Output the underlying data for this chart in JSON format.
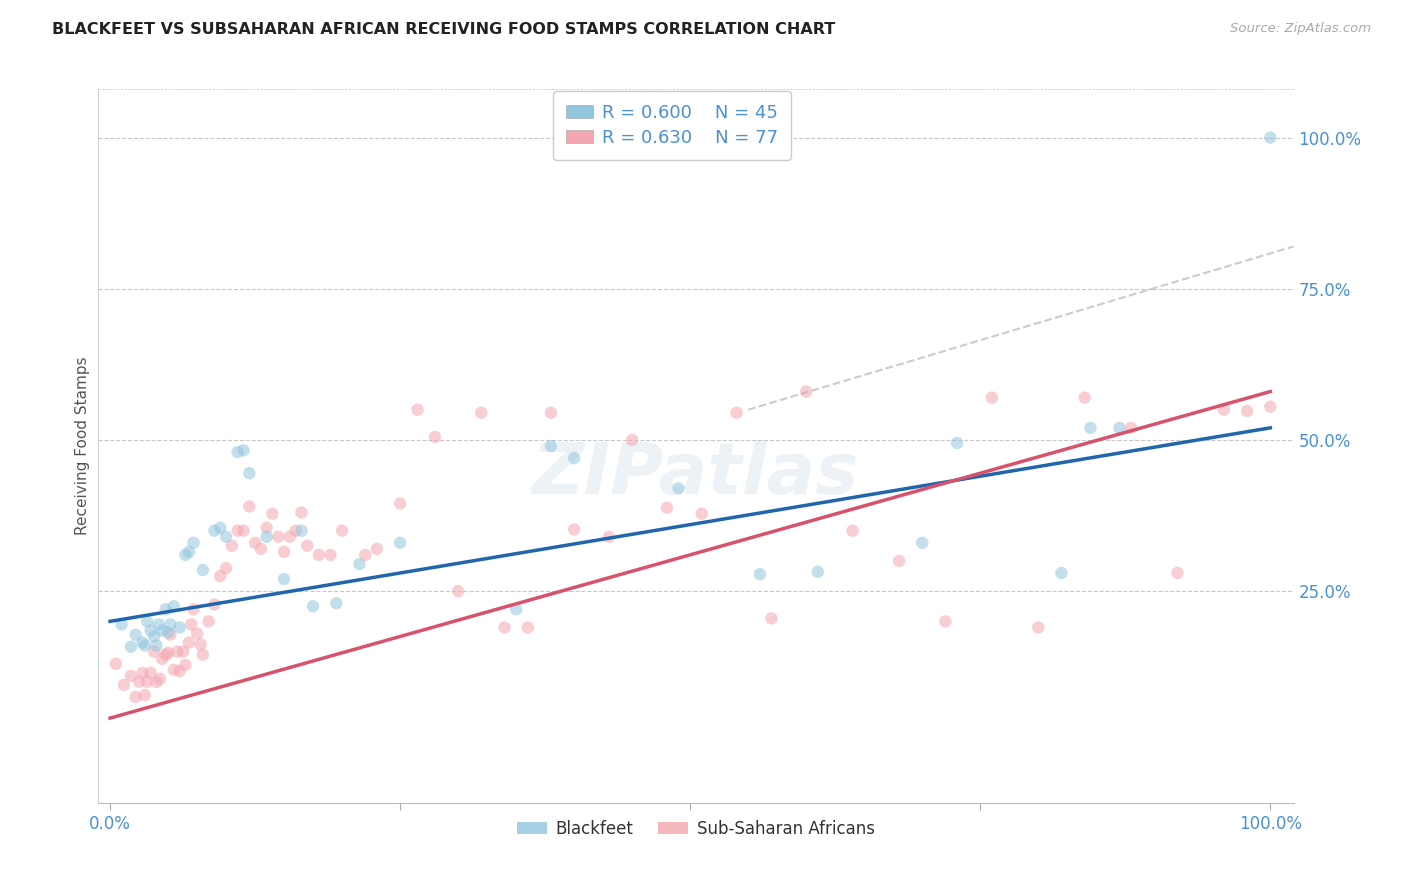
{
  "title": "BLACKFEET VS SUBSAHARAN AFRICAN RECEIVING FOOD STAMPS CORRELATION CHART",
  "source": "Source: ZipAtlas.com",
  "ylabel": "Receiving Food Stamps",
  "xlim": [
    -0.01,
    1.02
  ],
  "ylim": [
    -0.1,
    1.08
  ],
  "yticks": [
    0.25,
    0.5,
    0.75,
    1.0
  ],
  "ytick_labels": [
    "25.0%",
    "50.0%",
    "75.0%",
    "100.0%"
  ],
  "xticks": [
    0.0,
    0.25,
    0.5,
    0.75,
    1.0
  ],
  "xtick_labels": [
    "0.0%",
    "",
    "",
    "",
    "100.0%"
  ],
  "blue_R": "0.600",
  "blue_N": "45",
  "pink_R": "0.630",
  "pink_N": "77",
  "blue_scatter_color": "#92c5de",
  "pink_scatter_color": "#f4a6b0",
  "blue_line_color": "#2166ac",
  "pink_line_color": "#d6536b",
  "legend_label_blue": "Blackfeet",
  "legend_label_pink": "Sub-Saharan Africans",
  "background_color": "#ffffff",
  "grid_color": "#c8c8c8",
  "marker_size": 80,
  "marker_alpha": 0.55,
  "blue_line_x0": 0.0,
  "blue_line_y0": 0.2,
  "blue_line_x1": 1.0,
  "blue_line_y1": 0.52,
  "pink_line_x0": 0.0,
  "pink_line_y0": 0.04,
  "pink_line_x1": 1.0,
  "pink_line_y1": 0.58,
  "dash_line_x0": 0.55,
  "dash_line_y0": 0.55,
  "dash_line_x1": 1.02,
  "dash_line_y1": 0.82,
  "blue_x": [
    0.01,
    0.018,
    0.022,
    0.028,
    0.03,
    0.032,
    0.035,
    0.038,
    0.04,
    0.042,
    0.045,
    0.048,
    0.05,
    0.052,
    0.055,
    0.06,
    0.065,
    0.068,
    0.072,
    0.08,
    0.09,
    0.095,
    0.1,
    0.11,
    0.115,
    0.12,
    0.135,
    0.15,
    0.165,
    0.175,
    0.195,
    0.215,
    0.25,
    0.35,
    0.38,
    0.4,
    0.49,
    0.56,
    0.61,
    0.7,
    0.73,
    0.82,
    0.845,
    0.87,
    1.0
  ],
  "blue_y": [
    0.195,
    0.158,
    0.178,
    0.165,
    0.16,
    0.2,
    0.185,
    0.175,
    0.16,
    0.195,
    0.185,
    0.22,
    0.182,
    0.195,
    0.225,
    0.19,
    0.31,
    0.315,
    0.33,
    0.285,
    0.35,
    0.355,
    0.34,
    0.48,
    0.483,
    0.445,
    0.34,
    0.27,
    0.35,
    0.225,
    0.23,
    0.295,
    0.33,
    0.22,
    0.49,
    0.47,
    0.42,
    0.278,
    0.282,
    0.33,
    0.495,
    0.28,
    0.52,
    0.52,
    1.0
  ],
  "pink_x": [
    0.005,
    0.012,
    0.018,
    0.022,
    0.025,
    0.028,
    0.03,
    0.032,
    0.035,
    0.038,
    0.04,
    0.043,
    0.045,
    0.048,
    0.05,
    0.052,
    0.055,
    0.058,
    0.06,
    0.063,
    0.065,
    0.068,
    0.07,
    0.072,
    0.075,
    0.078,
    0.08,
    0.085,
    0.09,
    0.095,
    0.1,
    0.105,
    0.11,
    0.115,
    0.12,
    0.125,
    0.13,
    0.135,
    0.14,
    0.145,
    0.15,
    0.155,
    0.16,
    0.165,
    0.17,
    0.18,
    0.19,
    0.2,
    0.22,
    0.23,
    0.25,
    0.265,
    0.28,
    0.3,
    0.32,
    0.34,
    0.36,
    0.38,
    0.4,
    0.43,
    0.45,
    0.48,
    0.51,
    0.54,
    0.57,
    0.6,
    0.64,
    0.68,
    0.72,
    0.76,
    0.8,
    0.84,
    0.88,
    0.92,
    0.96,
    0.98,
    1.0
  ],
  "pink_y": [
    0.13,
    0.095,
    0.11,
    0.075,
    0.1,
    0.115,
    0.078,
    0.1,
    0.115,
    0.15,
    0.1,
    0.105,
    0.138,
    0.145,
    0.148,
    0.178,
    0.12,
    0.15,
    0.118,
    0.15,
    0.128,
    0.165,
    0.195,
    0.22,
    0.18,
    0.162,
    0.145,
    0.2,
    0.228,
    0.275,
    0.288,
    0.325,
    0.35,
    0.35,
    0.39,
    0.33,
    0.32,
    0.355,
    0.378,
    0.34,
    0.315,
    0.34,
    0.35,
    0.38,
    0.325,
    0.31,
    0.31,
    0.35,
    0.31,
    0.32,
    0.395,
    0.55,
    0.505,
    0.25,
    0.545,
    0.19,
    0.19,
    0.545,
    0.352,
    0.34,
    0.5,
    0.388,
    0.378,
    0.545,
    0.205,
    0.58,
    0.35,
    0.3,
    0.2,
    0.57,
    0.19,
    0.57,
    0.52,
    0.28,
    0.55,
    0.548,
    0.555
  ]
}
